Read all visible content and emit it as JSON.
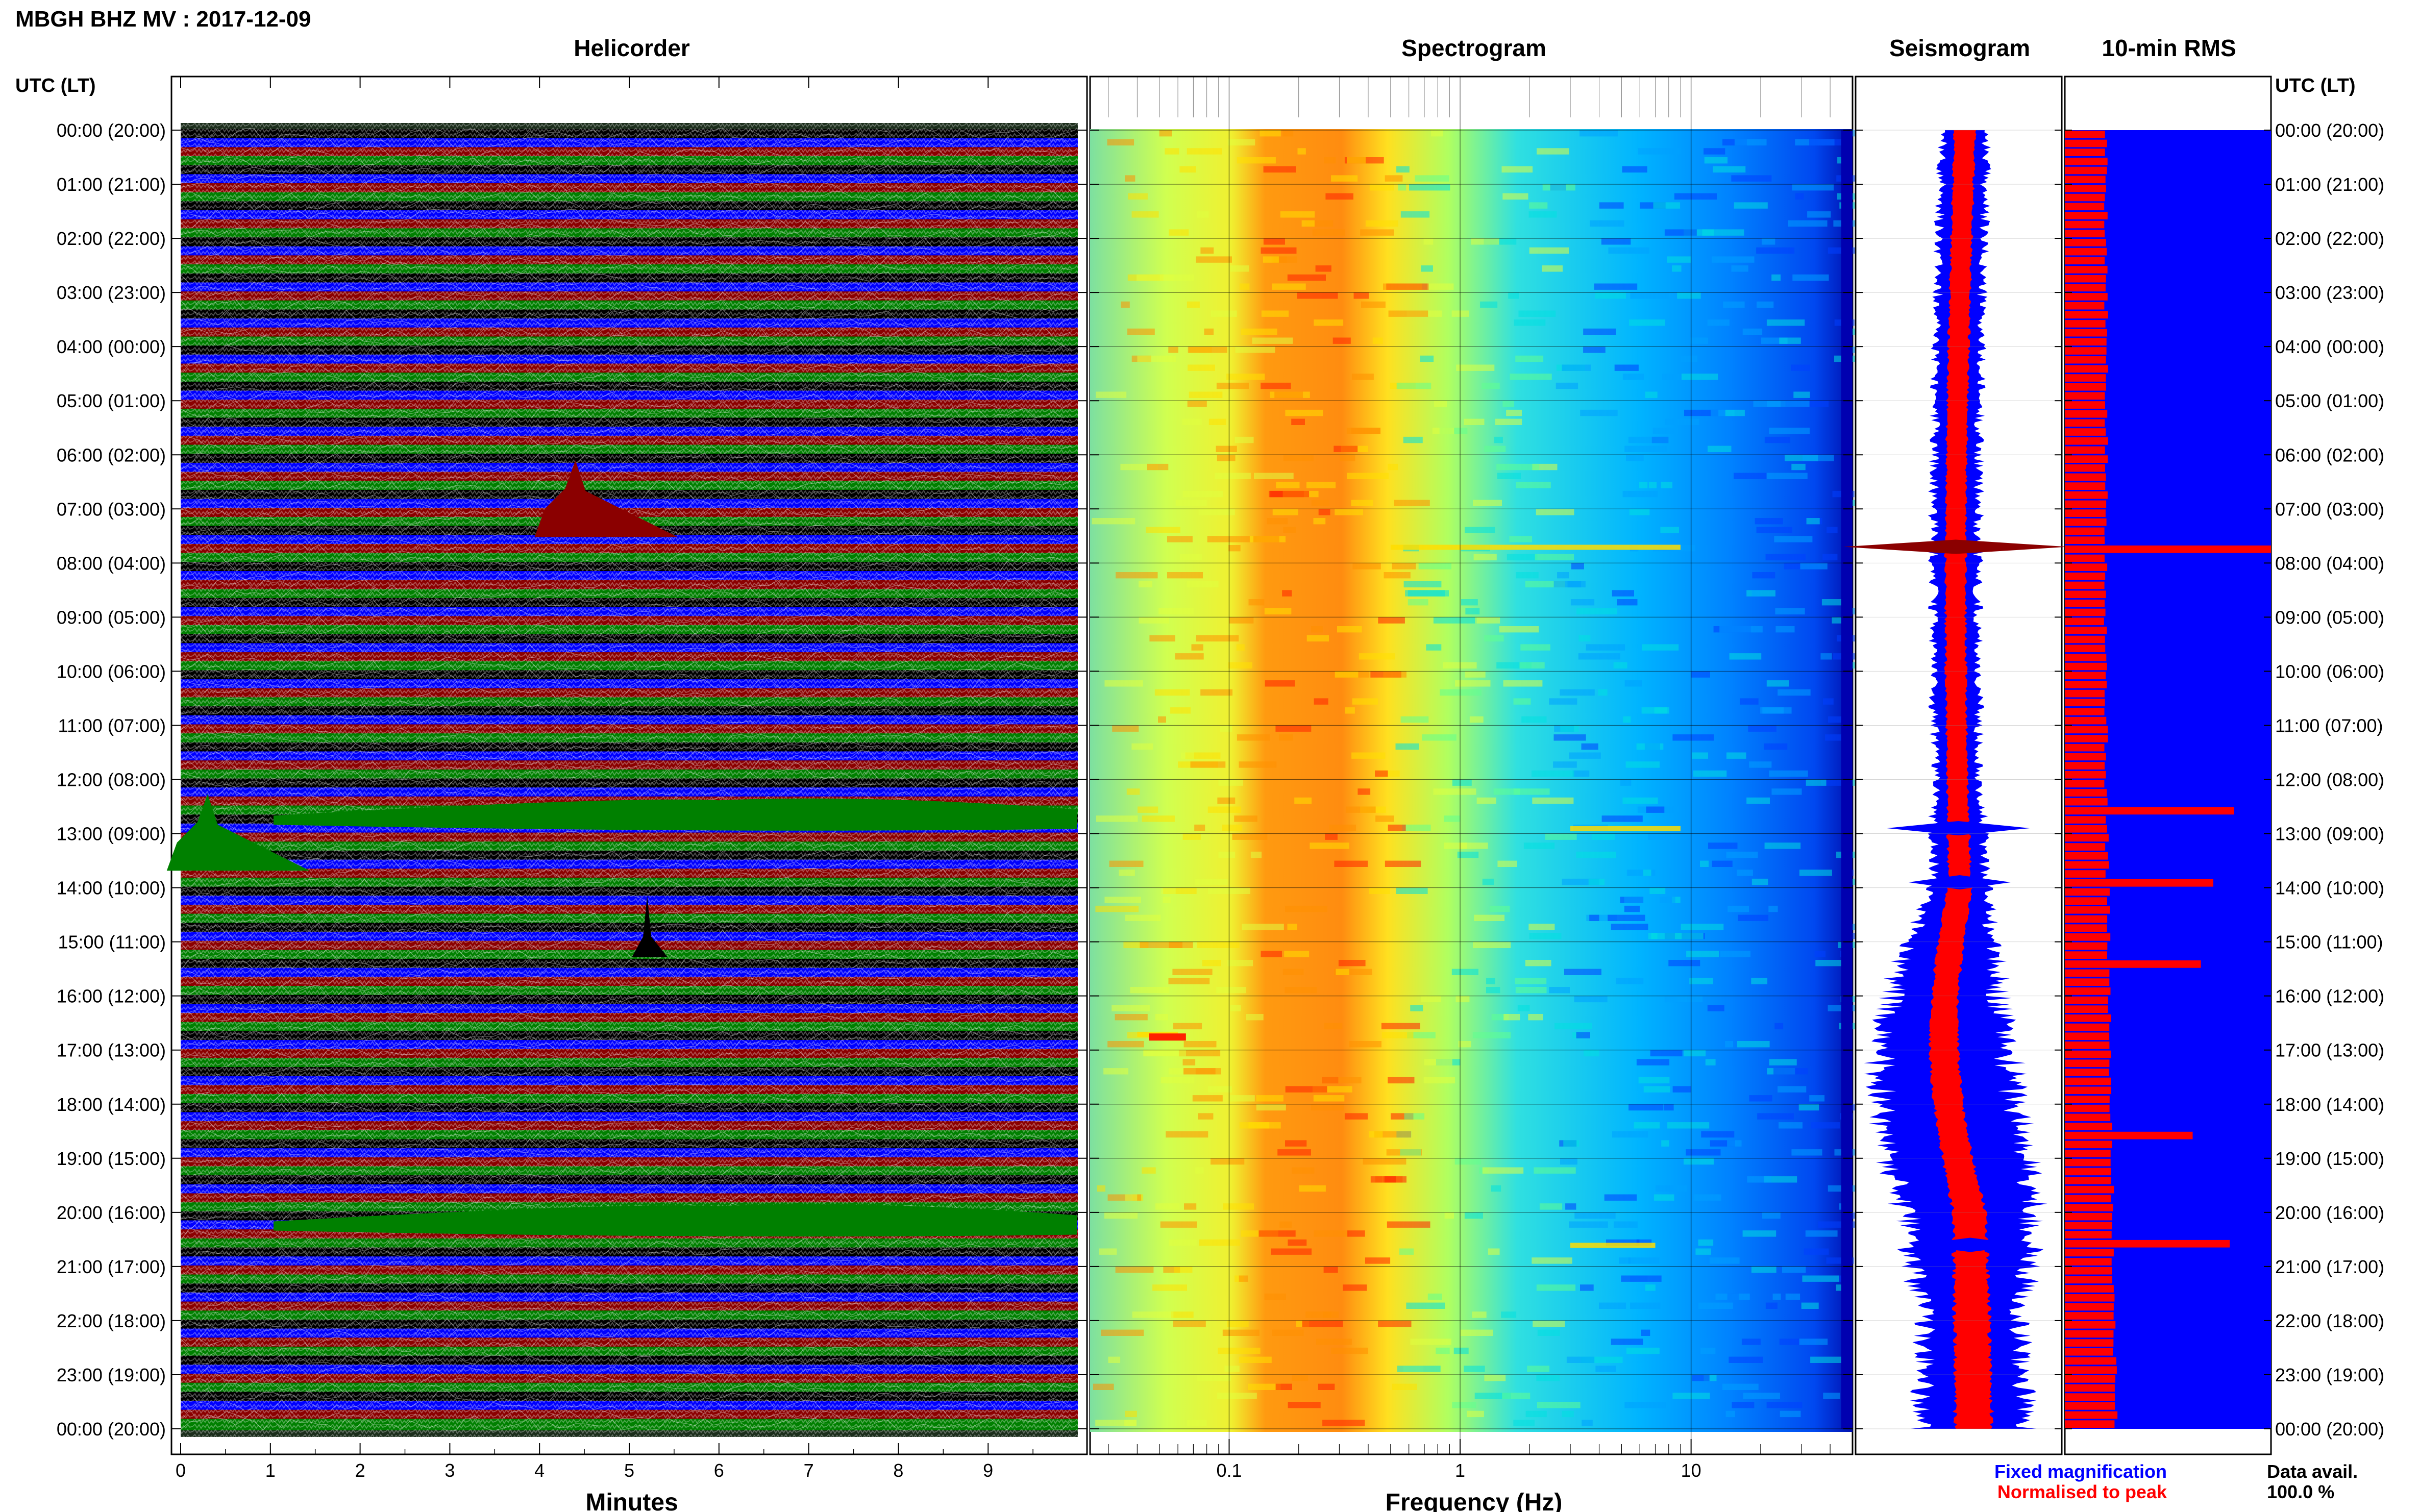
{
  "figure_title": "MBGH BHZ MV : 2017-12-09",
  "panels": {
    "helicorder": "Helicorder",
    "spectrogram": "Spectrogram",
    "seismogram": "Seismogram",
    "rms": "10-min RMS"
  },
  "time_axis_header": "UTC (LT)",
  "time_labels": [
    "00:00 (20:00)",
    "01:00 (21:00)",
    "02:00 (22:00)",
    "03:00 (23:00)",
    "04:00 (00:00)",
    "05:00 (01:00)",
    "06:00 (02:00)",
    "07:00 (03:00)",
    "08:00 (04:00)",
    "09:00 (05:00)",
    "10:00 (06:00)",
    "11:00 (07:00)",
    "12:00 (08:00)",
    "13:00 (09:00)",
    "14:00 (10:00)",
    "15:00 (11:00)",
    "16:00 (12:00)",
    "17:00 (13:00)",
    "18:00 (14:00)",
    "19:00 (15:00)",
    "20:00 (16:00)",
    "21:00 (17:00)",
    "22:00 (18:00)",
    "23:00 (19:00)",
    "00:00 (20:00)"
  ],
  "legend": {
    "fixed": "Fixed magnification",
    "normalised": "Normalised to peak",
    "fixed_color": "#0000ff",
    "normalised_color": "#ff0000"
  },
  "data_avail": {
    "label": "Data avail.",
    "value": "100.0 %"
  },
  "chart_data": [
    {
      "type": "line",
      "panel": "helicorder",
      "xlabel": "Minutes",
      "xticks": [
        "0",
        "1",
        "2",
        "3",
        "4",
        "5",
        "6",
        "7",
        "8",
        "9"
      ],
      "xlim": [
        0,
        10
      ],
      "trace_colors": [
        "#000000",
        "#0000ff",
        "#8b0000",
        "#008000"
      ],
      "rows_per_hour": 6,
      "hours": 24,
      "events": [
        {
          "utc": "07:00",
          "minute": 4.4,
          "description": "large signal"
        },
        {
          "utc": "12:40",
          "minute": 6.0,
          "description": "sustained signal"
        },
        {
          "utc": "13:10",
          "minute": 0.3,
          "description": "large signal"
        },
        {
          "utc": "15:00",
          "minute": 5.2,
          "description": "spike"
        },
        {
          "utc": "20:10",
          "minute": 6.0,
          "description": "sustained signal"
        }
      ]
    },
    {
      "type": "heatmap",
      "panel": "spectrogram",
      "xlabel": "Frequency (Hz)",
      "xscale": "log",
      "xticks": [
        "0.1",
        "1",
        "10"
      ],
      "xlim": [
        0.025,
        50
      ],
      "colormap": [
        "#0000c8",
        "#0040ff",
        "#00a0ff",
        "#00e0e0",
        "#60ff90",
        "#e0ff40",
        "#ffe000",
        "#ff9000",
        "#ff2000",
        "#c00000"
      ]
    },
    {
      "type": "area",
      "panel": "seismogram",
      "series": [
        {
          "name": "Fixed magnification",
          "color": "#0000ff"
        },
        {
          "name": "Normalised to peak",
          "color": "#ff0000"
        }
      ]
    },
    {
      "type": "bar",
      "panel": "rms",
      "bins": 144,
      "color": "#ff0000",
      "background": "#0000ff",
      "spikes": [
        {
          "utc": "07:40",
          "value": 1.0
        },
        {
          "utc": "12:30",
          "value": 0.82
        },
        {
          "utc": "13:50",
          "value": 0.72
        },
        {
          "utc": "15:20",
          "value": 0.66
        },
        {
          "utc": "18:30",
          "value": 0.62
        },
        {
          "utc": "20:30",
          "value": 0.8
        }
      ]
    }
  ]
}
